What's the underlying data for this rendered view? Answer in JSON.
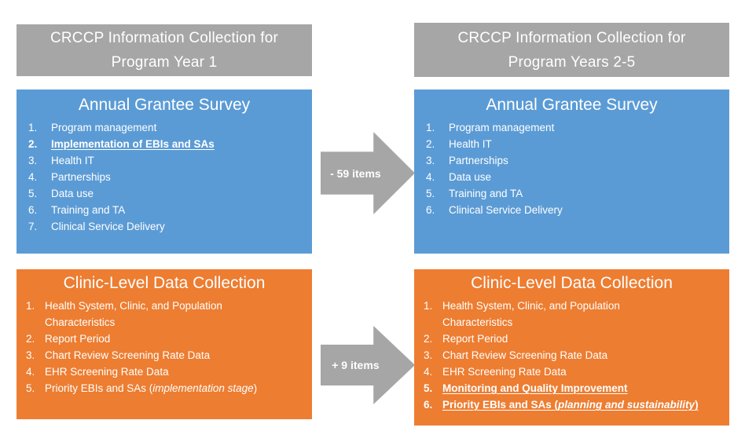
{
  "colors": {
    "header_gray": "#A6A6A6",
    "survey_blue": "#5B9BD5",
    "clinic_orange": "#ED7D31",
    "arrow_gray": "#A6A6A6",
    "text_white": "#FFFFFF",
    "background": "#FFFFFF"
  },
  "columns": [
    {
      "header": {
        "line1": "CRCCP Information Collection for",
        "line2": "Program Year 1"
      },
      "survey": {
        "title": "Annual Grantee Survey",
        "items": [
          {
            "num": "1.",
            "text": "Program management"
          },
          {
            "num": "2.",
            "text": "Implementation of EBIs and SAs"
          },
          {
            "num": "3.",
            "text": "Health IT"
          },
          {
            "num": "4.",
            "text": "Partnerships"
          },
          {
            "num": "5.",
            "text": "Data use"
          },
          {
            "num": "6.",
            "text": "Training and TA"
          },
          {
            "num": "7.",
            "text": "Clinical Service Delivery"
          }
        ]
      },
      "clinic": {
        "title": "Clinic-Level Data Collection",
        "items": [
          {
            "num": "1.",
            "text": "Health System, Clinic, and Population Characteristics"
          },
          {
            "num": "2.",
            "text": "Report Period"
          },
          {
            "num": "3.",
            "text": "Chart Review Screening Rate Data"
          },
          {
            "num": "4.",
            "text": "EHR Screening Rate Data"
          },
          {
            "num": "5.",
            "pre": "Priority EBIs and SAs (",
            "italic": "implementation stage",
            "post": ")"
          }
        ]
      }
    },
    {
      "header": {
        "line1": "CRCCP Information Collection for",
        "line2": "Program Years 2-5"
      },
      "survey": {
        "title": "Annual Grantee Survey",
        "items": [
          {
            "num": "1.",
            "text": "Program management"
          },
          {
            "num": "2.",
            "text": "Health IT"
          },
          {
            "num": "3.",
            "text": "Partnerships"
          },
          {
            "num": "4.",
            "text": "Data use"
          },
          {
            "num": "5.",
            "text": "Training and TA"
          },
          {
            "num": "6.",
            "text": "Clinical Service Delivery"
          }
        ]
      },
      "clinic": {
        "title": "Clinic-Level Data Collection",
        "items": [
          {
            "num": "1.",
            "text": "Health System, Clinic, and Population Characteristics"
          },
          {
            "num": "2.",
            "text": "Report Period"
          },
          {
            "num": "3.",
            "text": "Chart Review Screening Rate Data"
          },
          {
            "num": "4.",
            "text": "EHR Screening Rate Data"
          },
          {
            "num": "5.",
            "text": "Monitoring and Quality Improvement"
          },
          {
            "num": "6.",
            "pre": "Priority EBIs and SAs (",
            "italic": "planning and sustainability",
            "post": ")"
          }
        ]
      }
    }
  ],
  "arrows": [
    {
      "label": "- 59 items"
    },
    {
      "label": "+ 9 items"
    }
  ]
}
